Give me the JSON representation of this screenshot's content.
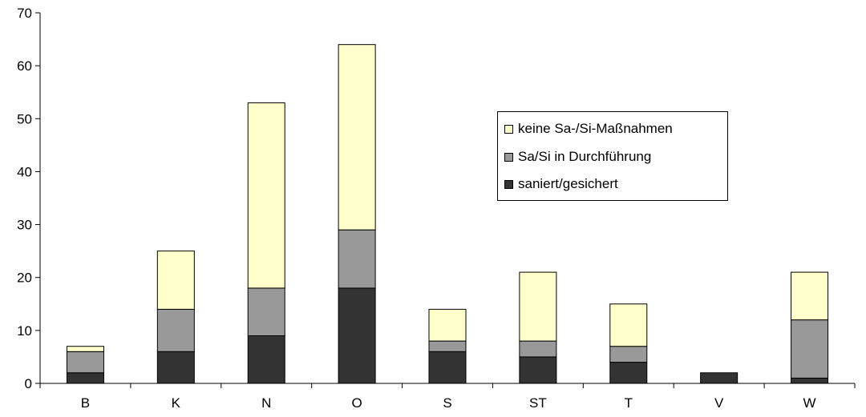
{
  "chart_data": {
    "type": "bar",
    "stacked": true,
    "title": "",
    "xlabel": "",
    "ylabel": "",
    "ylim": [
      0,
      70
    ],
    "yticks": [
      0,
      10,
      20,
      30,
      40,
      50,
      60,
      70
    ],
    "grid": false,
    "legend_position": "right",
    "categories": [
      "B",
      "K",
      "N",
      "O",
      "S",
      "ST",
      "T",
      "V",
      "W"
    ],
    "series": [
      {
        "name": "saniert/gesichert",
        "color": "#333333",
        "values": [
          2,
          6,
          9,
          18,
          6,
          5,
          4,
          2,
          1
        ]
      },
      {
        "name": "Sa/Si in Durchführung",
        "color": "#999999",
        "values": [
          4,
          8,
          9,
          11,
          2,
          3,
          3,
          0,
          11
        ]
      },
      {
        "name": "keine Sa-/Si-Maßnahmen",
        "color": "#ffffcc",
        "values": [
          1,
          11,
          35,
          35,
          6,
          13,
          8,
          0,
          9
        ]
      }
    ]
  }
}
